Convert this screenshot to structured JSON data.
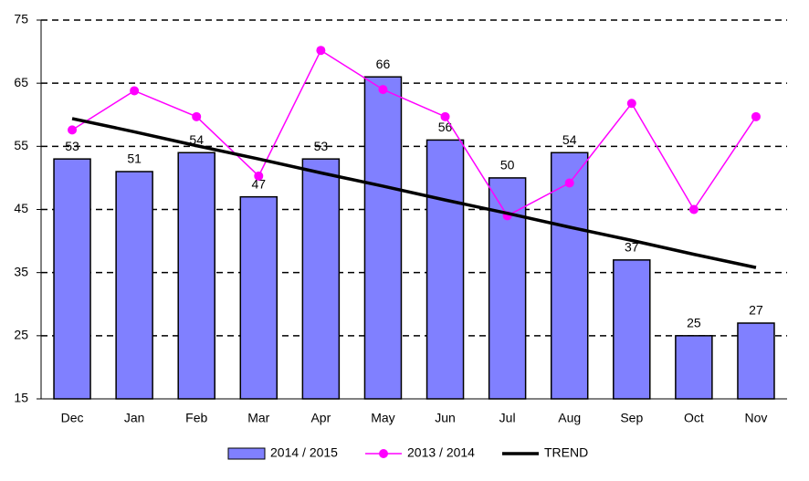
{
  "chart_data": {
    "type": "bar_line",
    "categories": [
      "Dec",
      "Jan",
      "Feb",
      "Mar",
      "Apr",
      "May",
      "Jun",
      "Jul",
      "Aug",
      "Sep",
      "Oct",
      "Nov"
    ],
    "series": [
      {
        "name": "2014 / 2015",
        "type": "bar",
        "color": "#8080ff",
        "values": [
          53,
          51,
          54,
          47,
          53,
          66,
          56,
          50,
          54,
          37,
          25,
          27
        ]
      },
      {
        "name": "2013 / 2014",
        "type": "line",
        "marker": true,
        "color": "#ff00ff",
        "values": [
          57.6,
          63.8,
          59.7,
          50.3,
          70.2,
          64,
          59.7,
          44,
          49.2,
          61.8,
          45,
          59.7
        ]
      },
      {
        "name": "TREND",
        "type": "line",
        "marker": false,
        "color": "#000000",
        "values": [
          59.4,
          57.3,
          55.1,
          53.0,
          50.8,
          48.7,
          46.5,
          44.4,
          42.2,
          40.1,
          37.9,
          35.8
        ]
      }
    ],
    "ylim": [
      15,
      75
    ],
    "yticks": [
      15,
      25,
      35,
      45,
      55,
      65,
      75
    ],
    "grid": true,
    "legend": "bottom"
  }
}
